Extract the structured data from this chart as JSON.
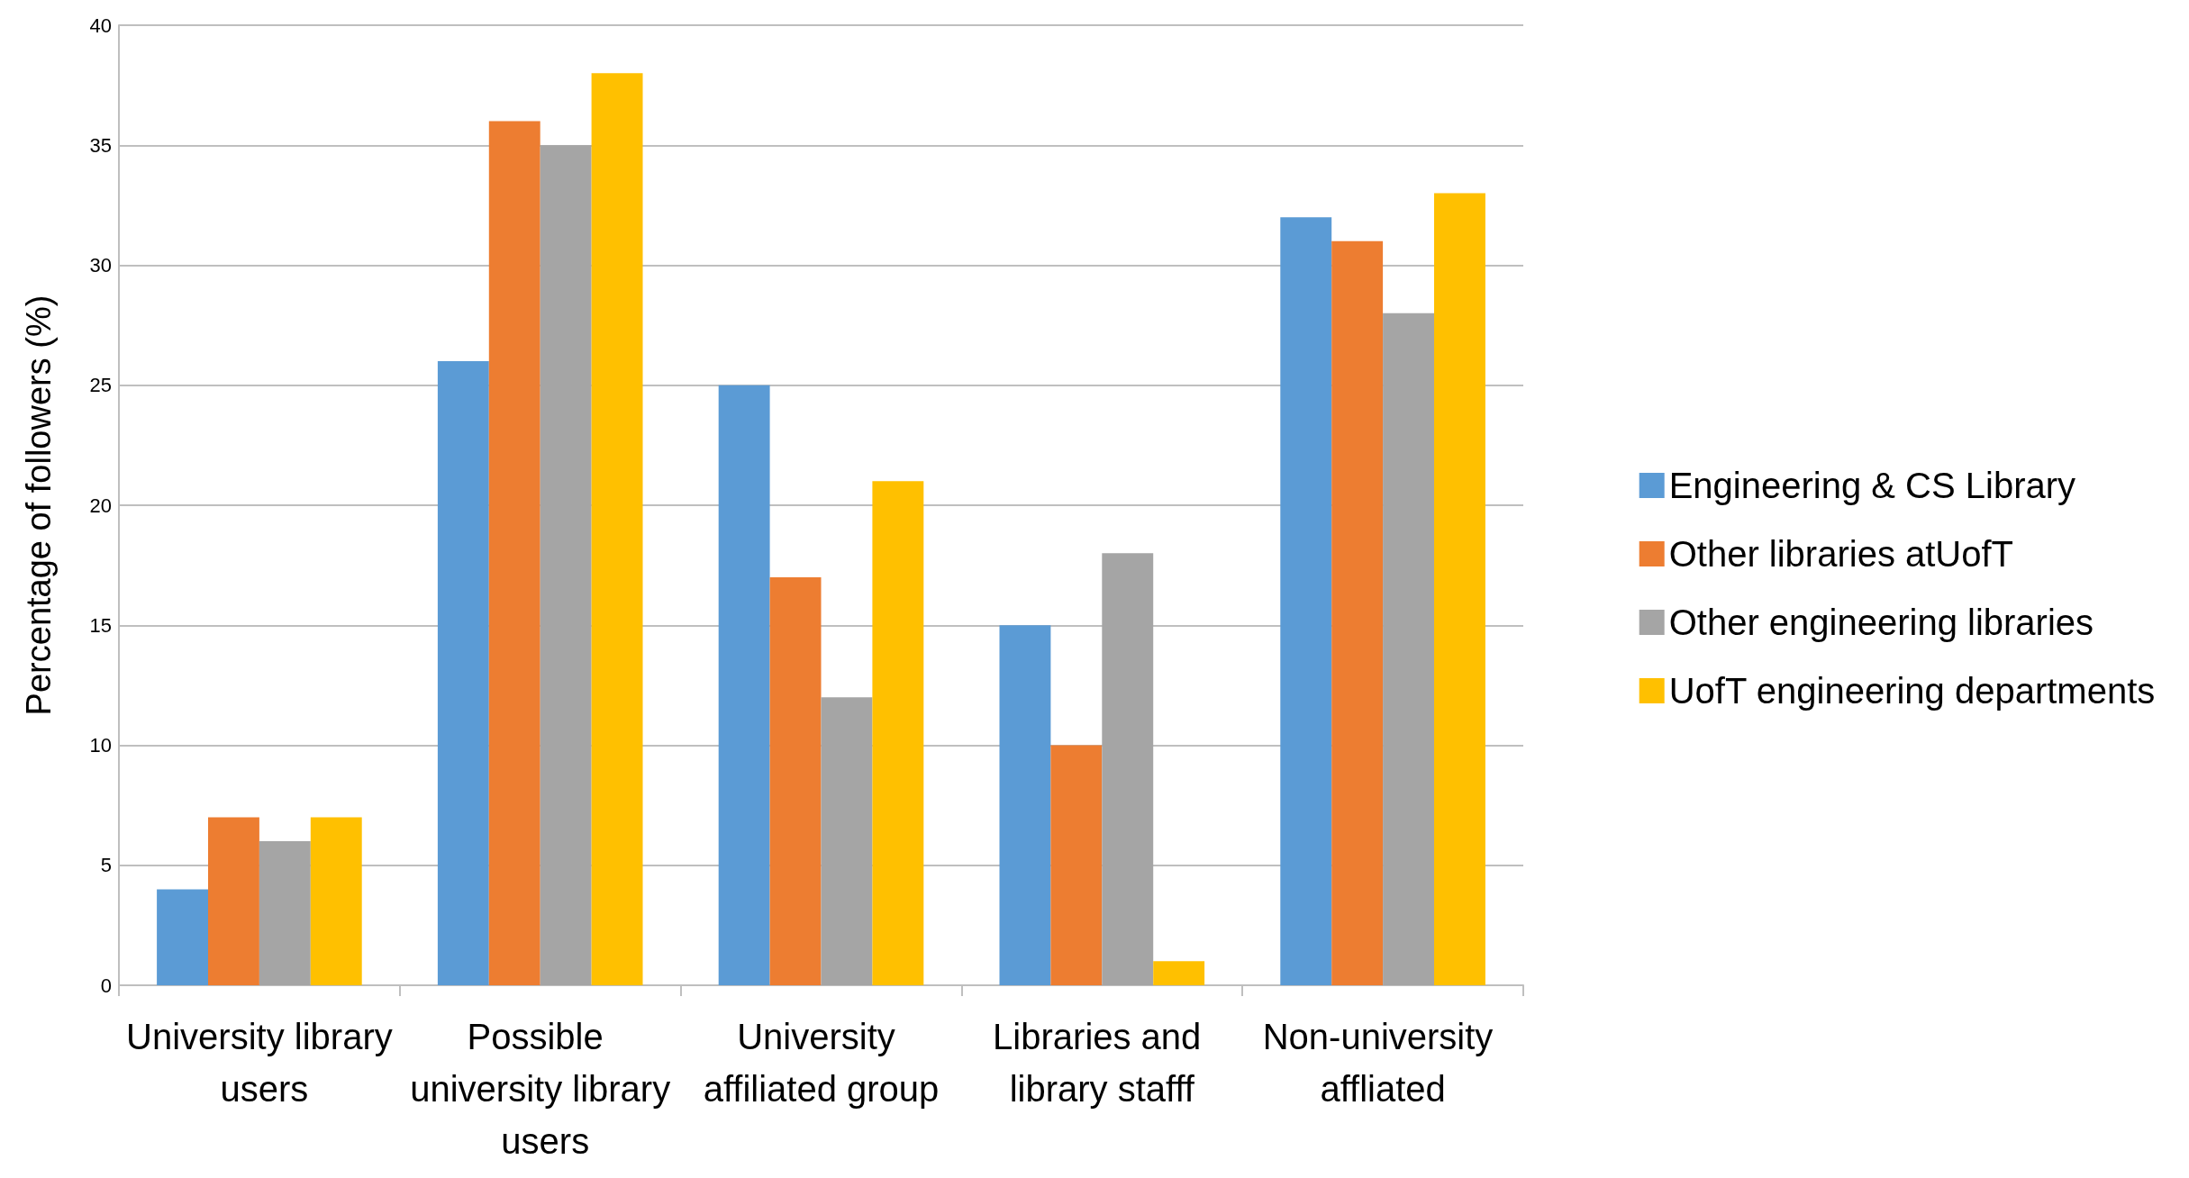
{
  "chart_data": {
    "type": "bar",
    "ylabel": "Percentage of followers (%)",
    "categories": [
      "University library users",
      "Possible university library users",
      "University affiliated group",
      "Libraries and library stafff",
      "Non-university affliated"
    ],
    "series": [
      {
        "name": "Engineering & CS Library",
        "color": "#5b9bd5",
        "values": [
          4,
          26,
          25,
          15,
          32
        ]
      },
      {
        "name": "Other libraries atUofT",
        "color": "#ed7d31",
        "values": [
          7,
          36,
          17,
          10,
          31
        ]
      },
      {
        "name": "Other engineering libraries",
        "color": "#a5a5a5",
        "values": [
          6,
          35,
          12,
          18,
          28
        ]
      },
      {
        "name": "UofT engineering departments",
        "color": "#ffc000",
        "values": [
          7,
          38,
          21,
          1,
          33
        ]
      }
    ],
    "ylim": [
      0,
      40
    ],
    "yticks": [
      0,
      5,
      10,
      15,
      20,
      25,
      30,
      35,
      40
    ],
    "grid": "y",
    "legend": "right"
  }
}
